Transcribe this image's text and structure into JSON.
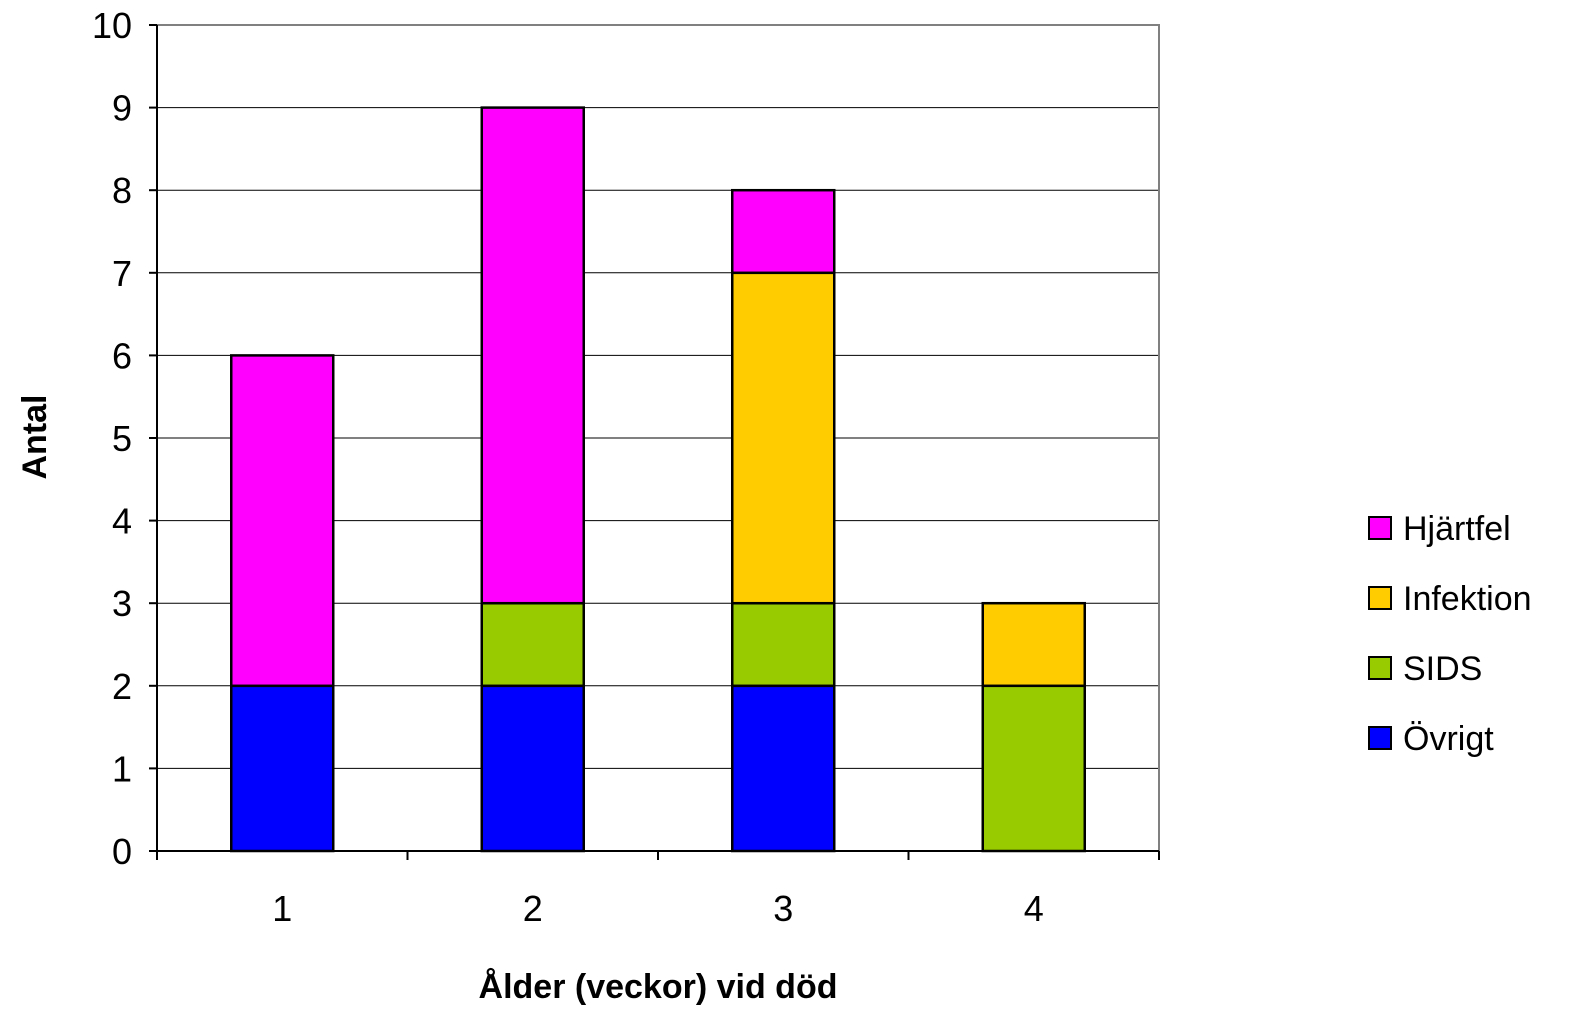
{
  "chart_data": {
    "type": "bar",
    "stacked": true,
    "categories": [
      "1",
      "2",
      "3",
      "4"
    ],
    "series": [
      {
        "name": "Övrigt",
        "values": [
          2,
          2,
          2,
          0
        ],
        "color": "#0000FF"
      },
      {
        "name": "SIDS",
        "values": [
          0,
          1,
          1,
          2
        ],
        "color": "#99CC00"
      },
      {
        "name": "Infektion",
        "values": [
          0,
          0,
          4,
          1
        ],
        "color": "#FFCC00"
      },
      {
        "name": "Hjärtfel",
        "values": [
          4,
          6,
          1,
          0
        ],
        "color": "#FF00FF"
      }
    ],
    "title": "",
    "xlabel": "Ålder (veckor) vid död",
    "ylabel": "Antal",
    "ylim": [
      0,
      10
    ],
    "yticks": [
      "0",
      "1",
      "2",
      "3",
      "4",
      "5",
      "6",
      "7",
      "8",
      "9",
      "10"
    ],
    "grid": true,
    "legend_position": "right",
    "legend_order": [
      "Hjärtfel",
      "Infektion",
      "SIDS",
      "Övrigt"
    ]
  }
}
